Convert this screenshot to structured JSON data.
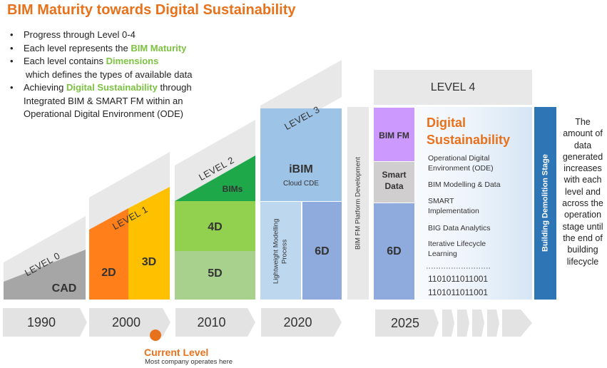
{
  "title": "BIM Maturity towards Digital Sustainability",
  "bullets": {
    "b1": "Progress through Level 0-4",
    "b2_pre": "Each level represents the ",
    "b2_hl": "BIM Maturity",
    "b3_pre": "Each level contains ",
    "b3_hl": "Dimensions",
    "b3_cont": "which defines the types of available data",
    "b4_pre": "Achieving ",
    "b4_hl": "Digital Sustainability",
    "b4_post": " through",
    "b4_l2": "Integrated BIM & SMART FM within an",
    "b4_l3": "Operational Digital Environment (ODE)"
  },
  "levels": {
    "l0": "LEVEL 0",
    "l1": "LEVEL 1",
    "l2": "LEVEL 2",
    "l3": "LEVEL 3",
    "l4": "LEVEL 4"
  },
  "blocks": {
    "cad": "CAD",
    "d2": "2D",
    "d3": "3D",
    "bims": "BIMs",
    "d4": "4D",
    "d5": "5D",
    "ibim": "iBIM",
    "cloud_cde": "Cloud CDE",
    "lightweight": "Lightweight Modelling Process",
    "d6": "6D",
    "platform": "BIM FM Platform Development",
    "bimfm": "BIM FM",
    "smart_data": "Smart Data",
    "d6_l4": "6D",
    "demolition": "Building Demolition Stage"
  },
  "digital_sustainability": {
    "heading_l1": "Digital",
    "heading_l2": "Sustainability",
    "items": [
      "Operational Digital Environment (ODE)",
      "BIM Modelling & Data",
      "SMART Implementation",
      "BIG Data Analytics",
      "Iterative Lifecycle Learning"
    ],
    "binary_1": "1101011011001",
    "binary_2": "1101011011001"
  },
  "side_note": "The amount of data generated increases with each level and across the operation stage until the end of building lifecycle",
  "timeline": {
    "y1990": "1990",
    "y2000": "2000",
    "y2010": "2010",
    "y2020": "2020",
    "y2025": "2025"
  },
  "current": {
    "label": "Current Level",
    "sub": "Most company operates here"
  },
  "colors": {
    "title": "#E8711C",
    "highlight_green": "#7CC242",
    "orange": "#FF7F1A",
    "yellow": "#FFC000",
    "dark_green": "#1FA84A",
    "green_4d": "#92D050",
    "green_5d": "#A9D18E",
    "blue_light": "#9DC3E6",
    "blue_mid": "#8FAADC",
    "purple": "#CC99FF",
    "demolition_blue": "#2E75B6"
  }
}
